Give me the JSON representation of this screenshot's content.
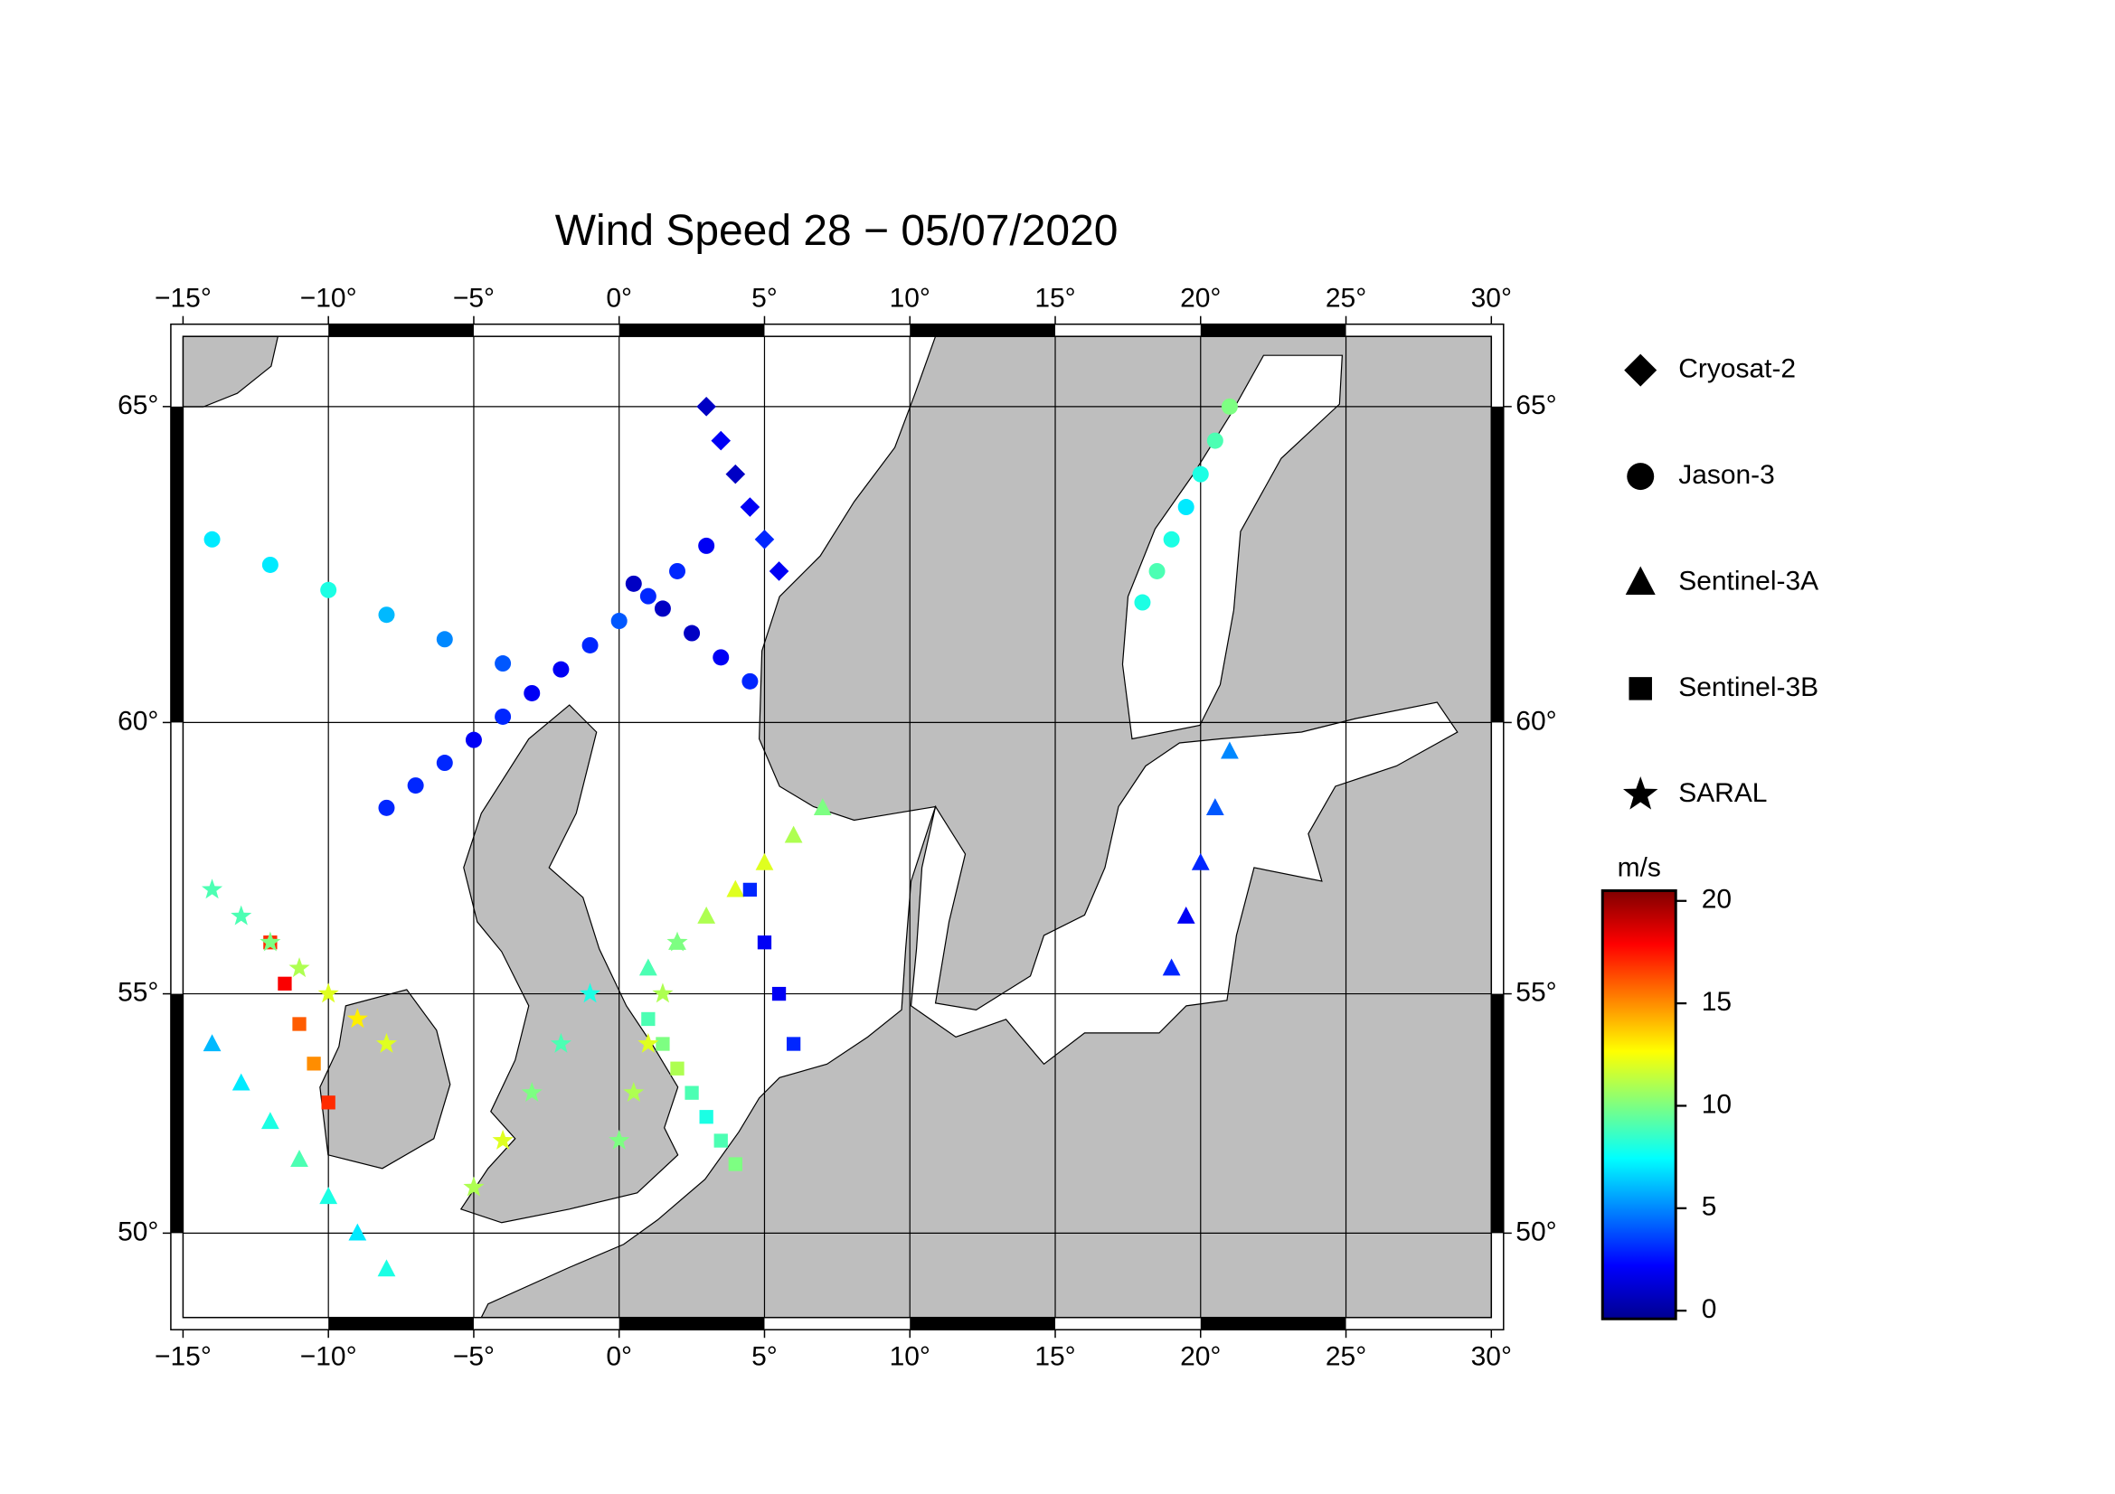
{
  "chart_data": {
    "type": "scatter-map",
    "title": "Wind Speed 28 − 05/07/2020",
    "projection": "mercator",
    "xlim": [
      -15,
      30
    ],
    "ylim": [
      48.1,
      66.0
    ],
    "xticks": [
      {
        "value": -15,
        "label": "−15°"
      },
      {
        "value": -10,
        "label": "−10°"
      },
      {
        "value": -5,
        "label": "−5°"
      },
      {
        "value": 0,
        "label": "0°"
      },
      {
        "value": 5,
        "label": "5°"
      },
      {
        "value": 10,
        "label": "10°"
      },
      {
        "value": 15,
        "label": "15°"
      },
      {
        "value": 20,
        "label": "20°"
      },
      {
        "value": 25,
        "label": "25°"
      },
      {
        "value": 30,
        "label": "30°"
      }
    ],
    "yticks": [
      {
        "value": 50,
        "label": "50°"
      },
      {
        "value": 55,
        "label": "55°"
      },
      {
        "value": 60,
        "label": "60°"
      },
      {
        "value": 65,
        "label": "65°"
      }
    ],
    "grid": true,
    "colorbar": {
      "label": "m/s",
      "colormap": "jet",
      "lim": [
        -0.4,
        20.5
      ],
      "ticks": [
        0,
        5,
        10,
        15,
        20
      ]
    },
    "series": [
      {
        "name": "Cryosat-2",
        "marker": "diamond",
        "lon": [
          3,
          3.5,
          4,
          4.5,
          5,
          5.5
        ],
        "lat": [
          65,
          64.5,
          64,
          63.5,
          63,
          62.5
        ],
        "values": [
          1,
          2,
          1,
          2,
          3,
          2
        ]
      },
      {
        "name": "Jason-3",
        "marker": "circle",
        "lon": [
          -8,
          -7,
          -6,
          -5,
          -4,
          -3,
          -2,
          -1,
          0,
          1,
          2,
          3,
          0.5,
          1.5,
          2.5,
          3.5,
          4.5,
          18,
          18.5,
          19,
          19.5,
          20,
          20.5,
          21,
          -14,
          -12,
          -10,
          -8,
          -6,
          -4
        ],
        "lat": [
          58.5,
          58.9,
          59.3,
          59.7,
          60.1,
          60.5,
          60.9,
          61.3,
          61.7,
          62.1,
          62.5,
          62.9,
          62.3,
          61.9,
          61.5,
          61.1,
          60.7,
          62.0,
          62.5,
          63.0,
          63.5,
          64.0,
          64.5,
          65.0,
          63,
          62.6,
          62.2,
          61.8,
          61.4,
          61
        ],
        "values": [
          3,
          3,
          3,
          2,
          3,
          2,
          2,
          3,
          4,
          3,
          3,
          2,
          1,
          1,
          1,
          2,
          3,
          8,
          9,
          8,
          7,
          8,
          9,
          10,
          7,
          7,
          8,
          6,
          5,
          4
        ]
      },
      {
        "name": "Sentinel-3A",
        "marker": "triangle",
        "lon": [
          -14,
          -13,
          -12,
          -11,
          -10,
          -9,
          -8,
          1,
          2,
          3,
          4,
          5,
          6,
          7,
          19,
          19.5,
          20,
          20.5,
          21
        ],
        "lat": [
          54,
          53.2,
          52.4,
          51.6,
          50.8,
          50,
          49.2,
          55.5,
          56,
          56.5,
          57,
          57.5,
          58,
          58.5,
          55.5,
          56.5,
          57.5,
          58.5,
          59.5
        ],
        "values": [
          6,
          7,
          8,
          9,
          8,
          7,
          8,
          9,
          10,
          11,
          12,
          12,
          11,
          10,
          3,
          2,
          3,
          4,
          5
        ]
      },
      {
        "name": "Sentinel-3B",
        "marker": "square",
        "lon": [
          -12,
          -11.5,
          -11,
          -10.5,
          -10,
          1,
          1.5,
          2,
          2.5,
          3,
          3.5,
          4,
          4.5,
          5,
          5.5,
          6
        ],
        "lat": [
          56,
          55.2,
          54.4,
          53.6,
          52.8,
          54.5,
          54,
          53.5,
          53,
          52.5,
          52,
          51.5,
          57,
          56,
          55,
          54
        ],
        "values": [
          17,
          18,
          16,
          15,
          17,
          9,
          10,
          11,
          9,
          8,
          9,
          10,
          3,
          2,
          2,
          3
        ]
      },
      {
        "name": "SARAL",
        "marker": "star",
        "lon": [
          -14,
          -13,
          -12,
          -11,
          -10,
          -9,
          -8,
          -5,
          -4,
          -3,
          -2,
          -1,
          0,
          0.5,
          1,
          1.5,
          2
        ],
        "lat": [
          57,
          56.5,
          56,
          55.5,
          55,
          54.5,
          54,
          51,
          52,
          53,
          54,
          55,
          52,
          53,
          54,
          55,
          56
        ],
        "values": [
          9,
          9,
          10,
          11,
          12,
          13,
          12,
          11,
          12,
          10,
          9,
          8,
          10,
          11,
          12,
          11,
          10
        ]
      }
    ]
  }
}
